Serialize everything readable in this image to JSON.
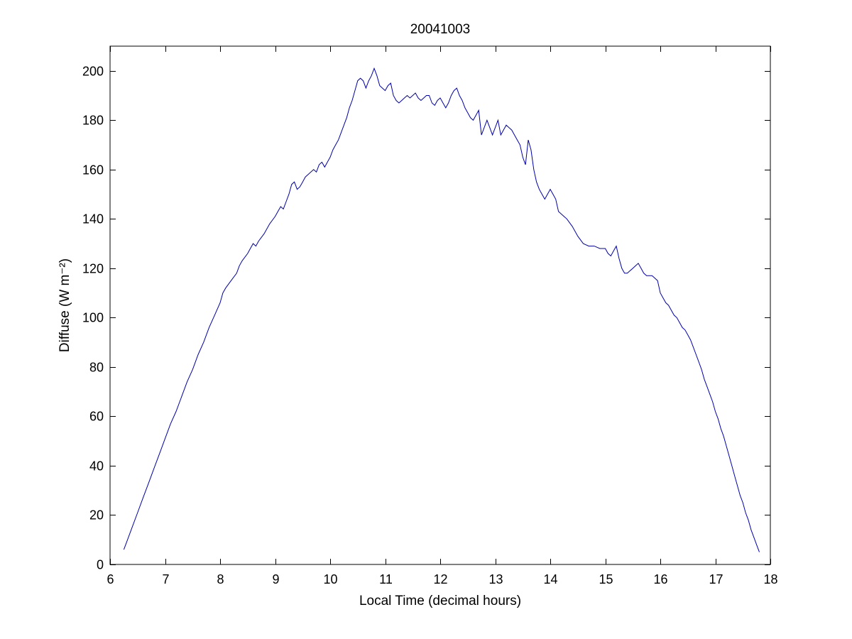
{
  "figure": {
    "background": "#ffffff",
    "axis_color": "#000000"
  },
  "chart_data": {
    "type": "line",
    "title": "20041003",
    "xlabel": "Local Time (decimal hours)",
    "ylabel": "Diffuse (W m⁻²)",
    "xlim": [
      6,
      18
    ],
    "ylim": [
      0,
      210
    ],
    "xticks": [
      6,
      7,
      8,
      9,
      10,
      11,
      12,
      13,
      14,
      15,
      16,
      17,
      18
    ],
    "yticks": [
      0,
      20,
      40,
      60,
      80,
      100,
      120,
      140,
      160,
      180,
      200
    ],
    "grid": false,
    "legend": null,
    "line_color": "#0000AA",
    "series": [
      {
        "name": "diffuse",
        "x": [
          6.25,
          6.3,
          6.4,
          6.5,
          6.6,
          6.7,
          6.8,
          6.9,
          7.0,
          7.1,
          7.2,
          7.3,
          7.4,
          7.5,
          7.6,
          7.7,
          7.8,
          7.9,
          8.0,
          8.05,
          8.1,
          8.2,
          8.3,
          8.35,
          8.4,
          8.5,
          8.55,
          8.6,
          8.65,
          8.7,
          8.8,
          8.9,
          9.0,
          9.05,
          9.1,
          9.15,
          9.2,
          9.25,
          9.3,
          9.35,
          9.4,
          9.45,
          9.5,
          9.55,
          9.6,
          9.7,
          9.75,
          9.8,
          9.85,
          9.9,
          9.95,
          10.0,
          10.05,
          10.1,
          10.15,
          10.2,
          10.25,
          10.3,
          10.35,
          10.4,
          10.45,
          10.5,
          10.55,
          10.6,
          10.65,
          10.7,
          10.75,
          10.8,
          10.85,
          10.9,
          10.95,
          11.0,
          11.05,
          11.1,
          11.15,
          11.2,
          11.25,
          11.3,
          11.35,
          11.4,
          11.45,
          11.5,
          11.55,
          11.6,
          11.65,
          11.7,
          11.75,
          11.8,
          11.85,
          11.9,
          11.95,
          12.0,
          12.05,
          12.1,
          12.15,
          12.2,
          12.25,
          12.3,
          12.35,
          12.4,
          12.45,
          12.5,
          12.55,
          12.6,
          12.65,
          12.7,
          12.75,
          12.8,
          12.85,
          12.9,
          12.95,
          13.0,
          13.05,
          13.1,
          13.15,
          13.2,
          13.25,
          13.3,
          13.35,
          13.4,
          13.45,
          13.5,
          13.55,
          13.6,
          13.65,
          13.7,
          13.75,
          13.8,
          13.85,
          13.9,
          13.95,
          14.0,
          14.05,
          14.1,
          14.15,
          14.2,
          14.25,
          14.3,
          14.4,
          14.5,
          14.6,
          14.7,
          14.8,
          14.9,
          15.0,
          15.05,
          15.1,
          15.15,
          15.2,
          15.25,
          15.3,
          15.35,
          15.4,
          15.45,
          15.5,
          15.55,
          15.6,
          15.65,
          15.7,
          15.75,
          15.8,
          15.85,
          15.9,
          15.95,
          16.0,
          16.05,
          16.1,
          16.15,
          16.2,
          16.25,
          16.3,
          16.35,
          16.4,
          16.45,
          16.5,
          16.55,
          16.6,
          16.65,
          16.7,
          16.75,
          16.8,
          16.85,
          16.9,
          16.95,
          17.0,
          17.05,
          17.1,
          17.15,
          17.2,
          17.25,
          17.3,
          17.35,
          17.4,
          17.45,
          17.5,
          17.55,
          17.6,
          17.65,
          17.7,
          17.75,
          17.8
        ],
        "y": [
          6,
          9,
          15,
          21,
          27,
          33,
          39,
          45,
          51,
          57,
          62,
          68,
          74,
          79,
          85,
          90,
          96,
          101,
          106,
          110,
          112,
          115,
          118,
          121,
          123,
          126,
          128,
          130,
          129,
          131,
          134,
          138,
          141,
          143,
          145,
          144,
          147,
          150,
          154,
          155,
          152,
          153,
          155,
          157,
          158,
          160,
          159,
          162,
          163,
          161,
          163,
          165,
          168,
          170,
          172,
          175,
          178,
          181,
          185,
          188,
          192,
          196,
          197,
          196,
          193,
          196,
          198,
          201,
          198,
          194,
          193,
          192,
          194,
          195,
          190,
          188,
          187,
          188,
          189,
          190,
          189,
          190,
          191,
          189,
          188,
          189,
          190,
          190,
          187,
          186,
          188,
          189,
          187,
          185,
          187,
          190,
          192,
          193,
          190,
          188,
          185,
          183,
          181,
          180,
          182,
          184,
          174,
          177,
          180,
          177,
          174,
          177,
          180,
          174,
          176,
          178,
          177,
          176,
          174,
          172,
          170,
          165,
          162,
          172,
          168,
          160,
          155,
          152,
          150,
          148,
          150,
          152,
          150,
          148,
          143,
          142,
          141,
          140,
          137,
          133,
          130,
          129,
          129,
          128,
          128,
          126,
          125,
          127,
          129,
          124,
          120,
          118,
          118,
          119,
          120,
          121,
          122,
          120,
          118,
          117,
          117,
          117,
          116,
          115,
          110,
          108,
          106,
          105,
          103,
          101,
          100,
          98,
          96,
          95,
          93,
          91,
          88,
          85,
          82,
          79,
          75,
          72,
          69,
          66,
          62,
          59,
          55,
          52,
          48,
          44,
          40,
          36,
          32,
          28,
          25,
          21,
          18,
          14,
          11,
          8,
          5
        ]
      }
    ]
  }
}
